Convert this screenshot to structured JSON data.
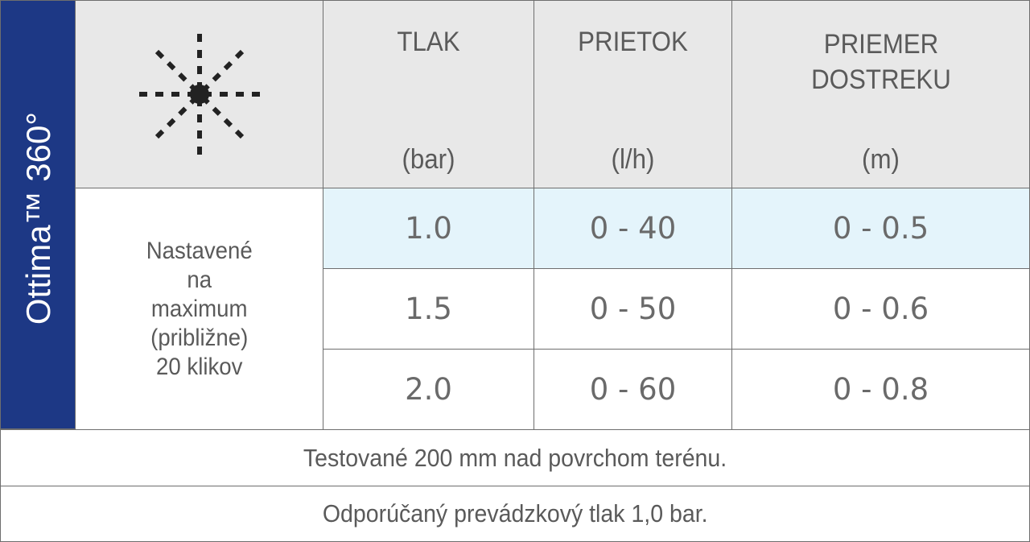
{
  "product": {
    "name": "Ottima™ 360°"
  },
  "header": {
    "icon": "spray-pattern-360-icon",
    "columns": [
      {
        "label": "TLAK",
        "unit": "(bar)"
      },
      {
        "label": "PRIETOK",
        "unit": "(l/h)"
      },
      {
        "label": "PRIEMER DOSTREKU",
        "unit": "(m)"
      }
    ]
  },
  "setting_note": [
    "Nastavené",
    "na",
    "maximum",
    "(približne)",
    "20 klikov"
  ],
  "rows": [
    [
      "1.0",
      "0 - 40",
      "0 - 0.5"
    ],
    [
      "1.5",
      "0 - 50",
      "0 - 0.6"
    ],
    [
      "2.0",
      "0 - 60",
      "0 - 0.8"
    ]
  ],
  "footnotes": [
    "Testované 200 mm nad povrchom terénu.",
    "Odporúčaný prevádzkový tlak 1,0 bar."
  ],
  "colors": {
    "brand_blue": "#1d3885",
    "header_bg": "#e8e8e8",
    "highlight_row": "#e4f4fb"
  }
}
